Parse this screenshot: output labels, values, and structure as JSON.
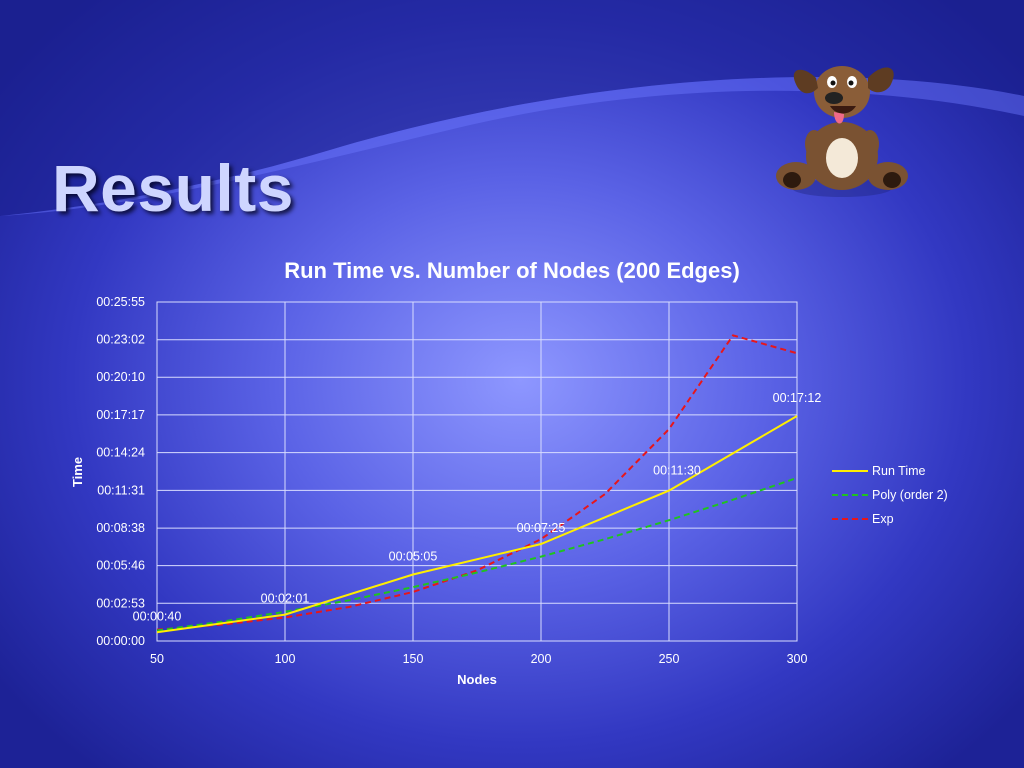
{
  "slide": {
    "title": "Results"
  },
  "chart_data": {
    "type": "line",
    "title": "Run Time vs. Number of Nodes (200 Edges)",
    "xlabel": "Nodes",
    "ylabel": "Time",
    "xlim": [
      50,
      300
    ],
    "ylim_seconds": [
      0,
      1555
    ],
    "x_ticks": [
      "50",
      "100",
      "150",
      "200",
      "250",
      "300"
    ],
    "x_tick_values": [
      50,
      100,
      150,
      200,
      250,
      300
    ],
    "y_ticks": [
      "00:00:00",
      "00:02:53",
      "00:05:46",
      "00:08:38",
      "00:11:31",
      "00:14:24",
      "00:17:17",
      "00:20:10",
      "00:23:02",
      "00:25:55"
    ],
    "y_tick_values_seconds": [
      0,
      173,
      346,
      518,
      691,
      864,
      1037,
      1210,
      1382,
      1555
    ],
    "grid": true,
    "legend_position": "right",
    "series": [
      {
        "name": "Run Time",
        "color": "#ffee00",
        "style": "solid",
        "x": [
          50,
          100,
          150,
          200,
          250,
          300
        ],
        "y_seconds": [
          40,
          121,
          305,
          445,
          690,
          1032
        ],
        "labels": [
          "00:00:40",
          "00:02:01",
          "00:05:05",
          "00:07:25",
          "00:11:30",
          "00:17:12"
        ]
      },
      {
        "name": "Poly (order 2)",
        "color": "#1fc31f",
        "style": "dashed",
        "x": [
          50,
          75,
          100,
          125,
          150,
          175,
          200,
          225,
          250,
          275,
          300
        ],
        "y_seconds": [
          48,
          88,
          134,
          187,
          247,
          314,
          387,
          467,
          554,
          648,
          748
        ]
      },
      {
        "name": "Exp",
        "color": "#e8161a",
        "style": "dashed",
        "x": [
          50,
          75,
          100,
          125,
          150,
          175,
          200,
          225,
          250,
          275,
          300
        ],
        "y_seconds": [
          52,
          75,
          108,
          156,
          225,
          324,
          467,
          674,
          972,
          1402,
          1320
        ]
      }
    ]
  }
}
